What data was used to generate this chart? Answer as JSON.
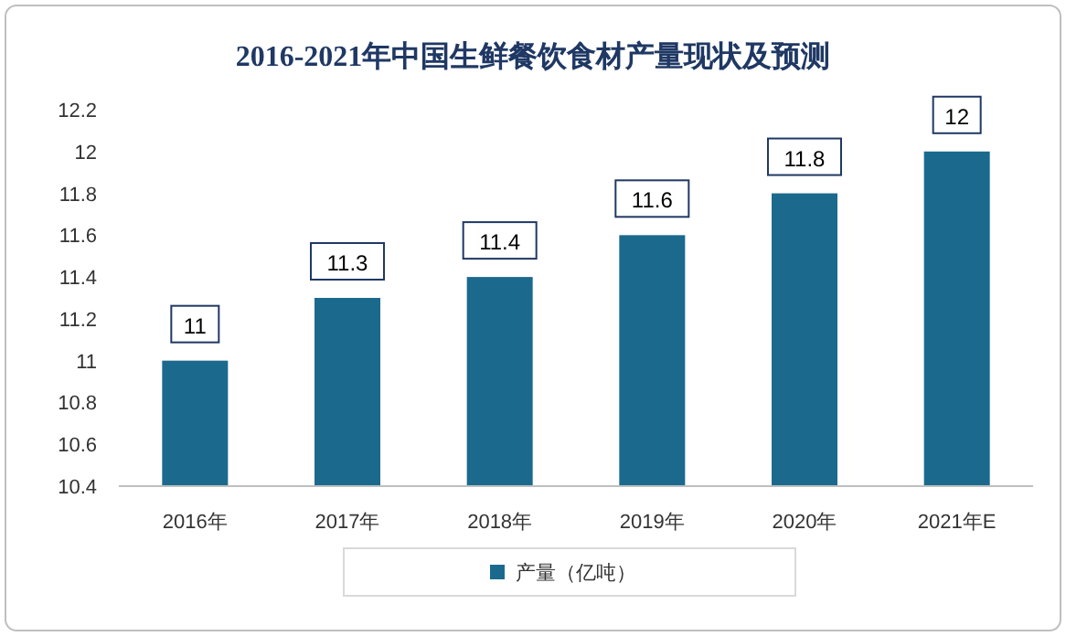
{
  "chart_data": {
    "type": "bar",
    "title": "2016-2021年中国生鲜餐饮食材产量现状及预测",
    "categories": [
      "2016年",
      "2017年",
      "2018年",
      "2019年",
      "2020年",
      "2021年E"
    ],
    "series": [
      {
        "name": "产量（亿吨）",
        "color": "#1b6a8e",
        "values": [
          11,
          11.3,
          11.4,
          11.6,
          11.8,
          12
        ]
      }
    ],
    "ylim": [
      10.4,
      12.2
    ],
    "yticks": [
      10.4,
      10.6,
      10.8,
      11,
      11.2,
      11.4,
      11.6,
      11.8,
      12,
      12.2
    ],
    "data_labels": true,
    "legend": "bottom"
  }
}
